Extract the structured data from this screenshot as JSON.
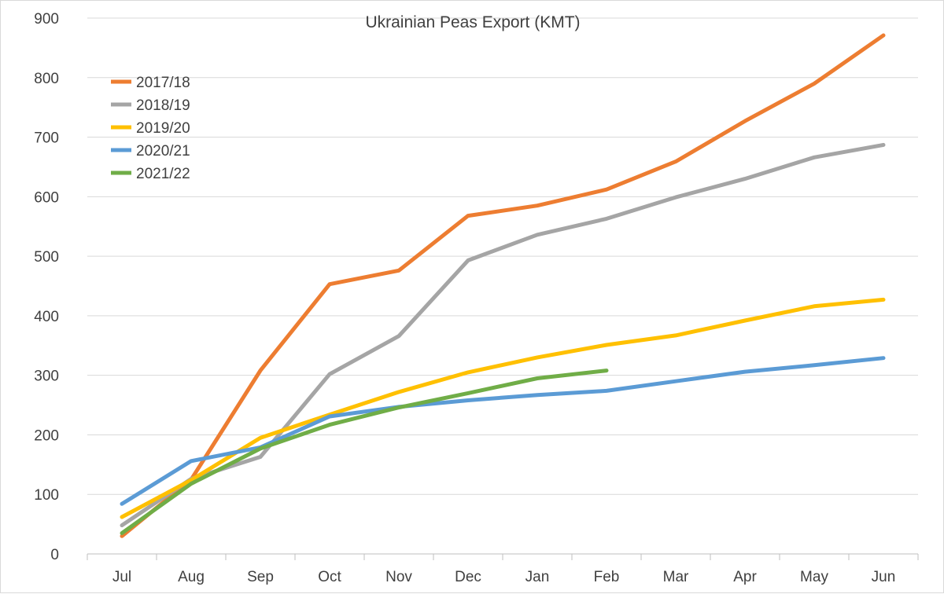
{
  "chart_data": {
    "type": "line",
    "title": "Ukrainian Peas Export (KMT)",
    "xlabel": "",
    "ylabel": "",
    "categories": [
      "Jul",
      "Aug",
      "Sep",
      "Oct",
      "Nov",
      "Dec",
      "Jan",
      "Feb",
      "Mar",
      "Apr",
      "May",
      "Jun"
    ],
    "ylim": [
      0,
      900
    ],
    "yticks": [
      0,
      100,
      200,
      300,
      400,
      500,
      600,
      700,
      800,
      900
    ],
    "grid": true,
    "legend_position": "top-left",
    "series": [
      {
        "name": "2017/18",
        "color": "#ED7D31",
        "values": [
          30,
          125,
          308,
          453,
          476,
          568,
          585,
          612,
          659,
          727,
          790,
          871
        ]
      },
      {
        "name": "2018/19",
        "color": "#A5A5A5",
        "values": [
          48,
          126,
          163,
          302,
          366,
          493,
          536,
          563,
          599,
          630,
          666,
          687
        ]
      },
      {
        "name": "2019/20",
        "color": "#FFC000",
        "values": [
          62,
          124,
          195,
          234,
          272,
          305,
          330,
          351,
          367,
          392,
          416,
          427
        ]
      },
      {
        "name": "2020/21",
        "color": "#5B9BD5",
        "values": [
          84,
          156,
          179,
          231,
          247,
          258,
          267,
          274,
          290,
          306,
          317,
          329
        ]
      },
      {
        "name": "2021/22",
        "color": "#70AD47",
        "values": [
          35,
          118,
          177,
          217,
          246,
          270,
          295,
          308,
          null,
          null,
          null,
          null
        ]
      }
    ]
  }
}
